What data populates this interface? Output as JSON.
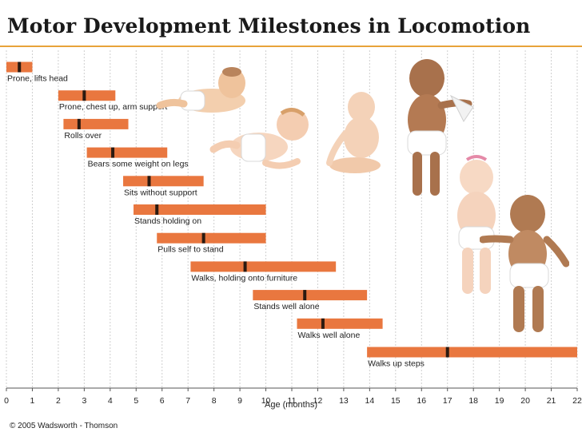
{
  "title": "Motor Development Milestones in Locomotion",
  "copyright": "© 2005 Wadsworth - Thomson",
  "colors": {
    "bar": "#e9773f",
    "marker": "#2b1a10",
    "accent_rule": "#e8a33a",
    "grid": "#cfcfcf"
  },
  "chart_data": {
    "type": "bar",
    "orientation": "horizontal-range",
    "xlabel": "Age (months)",
    "xlim": [
      0,
      22
    ],
    "x_ticks": [
      "0",
      "1",
      "2",
      "3",
      "4",
      "5",
      "6",
      "7",
      "8",
      "9",
      "10",
      "11",
      "12",
      "13",
      "14",
      "15",
      "16",
      "17",
      "18",
      "19",
      "20",
      "21",
      "22"
    ],
    "grid": true,
    "milestones": [
      {
        "label": "Prone, lifts head",
        "start": 0,
        "end": 1,
        "average": 0.5
      },
      {
        "label": "Prone, chest up, arm support",
        "start": 2,
        "end": 4.2,
        "average": 3
      },
      {
        "label": "Rolls over",
        "start": 2.2,
        "end": 4.7,
        "average": 2.8
      },
      {
        "label": "Bears some weight on legs",
        "start": 3.1,
        "end": 6.2,
        "average": 4.1
      },
      {
        "label": "Sits without support",
        "start": 4.5,
        "end": 7.6,
        "average": 5.5
      },
      {
        "label": "Stands holding on",
        "start": 4.9,
        "end": 10,
        "average": 5.8
      },
      {
        "label": "Pulls self to stand",
        "start": 5.8,
        "end": 10,
        "average": 7.6
      },
      {
        "label": "Walks, holding onto furniture",
        "start": 7.1,
        "end": 12.7,
        "average": 9.2
      },
      {
        "label": "Stands well alone",
        "start": 9.5,
        "end": 13.9,
        "average": 11.5
      },
      {
        "label": "Walks well alone",
        "start": 11.2,
        "end": 14.5,
        "average": 12.2
      },
      {
        "label": "Walks up steps",
        "start": 13.9,
        "end": 22,
        "average": 17
      }
    ]
  }
}
